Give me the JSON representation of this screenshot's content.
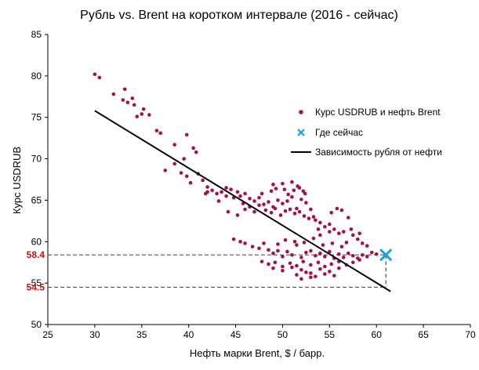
{
  "chart_data": {
    "type": "scatter",
    "title": "Рубль vs. Brent на коротком интервале (2016 - сейчас)",
    "xlabel": "Нефть  марки Brent, $ / барр.",
    "ylabel": "Курс USDRUB",
    "xlim": [
      25,
      70
    ],
    "ylim": [
      50,
      85
    ],
    "xticks": [
      25,
      30,
      35,
      40,
      45,
      50,
      55,
      60,
      65,
      70
    ],
    "yticks": [
      50,
      55,
      60,
      65,
      70,
      75,
      80,
      85
    ],
    "grid": false,
    "legend_position": "right",
    "colors": {
      "points": "#a50f4a",
      "current": "#1aa0e0",
      "trend": "#000000",
      "reference_label": "#d01010",
      "reference_line": "#555555"
    },
    "series": [
      {
        "name": "Курс USDRUB и нефть Brent",
        "kind": "points",
        "points": [
          [
            30.0,
            80.2
          ],
          [
            30.5,
            79.8
          ],
          [
            32.0,
            77.8
          ],
          [
            33.2,
            78.4
          ],
          [
            33.0,
            77.1
          ],
          [
            33.5,
            76.8
          ],
          [
            34.2,
            76.5
          ],
          [
            34.5,
            75.1
          ],
          [
            35.0,
            75.4
          ],
          [
            35.2,
            76.0
          ],
          [
            35.8,
            75.3
          ],
          [
            34.0,
            77.3
          ],
          [
            36.6,
            73.4
          ],
          [
            37.0,
            73.1
          ],
          [
            38.5,
            71.7
          ],
          [
            39.8,
            72.9
          ],
          [
            39.5,
            70.0
          ],
          [
            40.5,
            71.3
          ],
          [
            40.8,
            70.8
          ],
          [
            37.5,
            68.6
          ],
          [
            38.5,
            69.4
          ],
          [
            39.2,
            68.3
          ],
          [
            39.8,
            67.9
          ],
          [
            40.2,
            67.1
          ],
          [
            41.0,
            68.2
          ],
          [
            41.5,
            67.4
          ],
          [
            42.0,
            66.6
          ],
          [
            42.5,
            66.2
          ],
          [
            43.0,
            65.8
          ],
          [
            43.5,
            66.0
          ],
          [
            44.0,
            66.5
          ],
          [
            44.5,
            66.3
          ],
          [
            45.2,
            66.0
          ],
          [
            45.5,
            65.5
          ],
          [
            46.0,
            65.8
          ],
          [
            46.5,
            65.2
          ],
          [
            47.0,
            64.9
          ],
          [
            47.5,
            65.3
          ],
          [
            48.0,
            64.5
          ],
          [
            48.5,
            64.8
          ],
          [
            49.0,
            64.2
          ],
          [
            49.5,
            65.0
          ],
          [
            50.0,
            64.6
          ],
          [
            50.5,
            64.9
          ],
          [
            51.0,
            65.4
          ],
          [
            51.5,
            64.0
          ],
          [
            52.0,
            65.1
          ],
          [
            52.5,
            64.7
          ],
          [
            46.0,
            63.9
          ],
          [
            46.5,
            64.2
          ],
          [
            47.0,
            63.6
          ],
          [
            47.5,
            64.4
          ],
          [
            48.2,
            63.8
          ],
          [
            48.8,
            63.5
          ],
          [
            49.2,
            64.0
          ],
          [
            49.8,
            63.2
          ],
          [
            50.3,
            63.7
          ],
          [
            50.8,
            63.9
          ],
          [
            51.3,
            63.4
          ],
          [
            51.8,
            63.6
          ],
          [
            52.3,
            63.1
          ],
          [
            52.8,
            62.8
          ],
          [
            53.3,
            63.0
          ],
          [
            44.8,
            65.3
          ],
          [
            45.8,
            64.6
          ],
          [
            47.8,
            65.8
          ],
          [
            48.8,
            66.1
          ],
          [
            49.3,
            66.4
          ],
          [
            50.2,
            66.3
          ],
          [
            50.6,
            65.7
          ],
          [
            51.2,
            66.2
          ],
          [
            51.6,
            66.7
          ],
          [
            52.2,
            66.1
          ],
          [
            49.0,
            66.9
          ],
          [
            50.0,
            67.0
          ],
          [
            51.0,
            67.2
          ],
          [
            51.8,
            66.5
          ],
          [
            52.4,
            65.8
          ],
          [
            53.0,
            63.9
          ],
          [
            53.5,
            62.6
          ],
          [
            54.0,
            62.3
          ],
          [
            54.5,
            61.8
          ],
          [
            55.0,
            62.1
          ],
          [
            55.5,
            61.5
          ],
          [
            56.0,
            61.0
          ],
          [
            56.5,
            61.2
          ],
          [
            55.2,
            63.5
          ],
          [
            55.8,
            64.0
          ],
          [
            56.3,
            63.8
          ],
          [
            57.0,
            62.9
          ],
          [
            57.5,
            60.8
          ],
          [
            58.0,
            60.3
          ],
          [
            58.5,
            59.8
          ],
          [
            59.0,
            59.5
          ],
          [
            57.3,
            61.5
          ],
          [
            58.2,
            61.0
          ],
          [
            44.8,
            60.3
          ],
          [
            45.5,
            60.0
          ],
          [
            46.0,
            59.8
          ],
          [
            46.8,
            59.4
          ],
          [
            47.5,
            59.2
          ],
          [
            48.0,
            59.8
          ],
          [
            48.5,
            59.0
          ],
          [
            49.0,
            58.6
          ],
          [
            49.5,
            58.9
          ],
          [
            50.0,
            58.2
          ],
          [
            50.5,
            58.8
          ],
          [
            51.0,
            58.4
          ],
          [
            51.5,
            59.6
          ],
          [
            52.0,
            58.1
          ],
          [
            52.5,
            58.7
          ],
          [
            53.0,
            58.9
          ],
          [
            53.5,
            58.3
          ],
          [
            54.0,
            58.6
          ],
          [
            54.5,
            58.2
          ],
          [
            55.0,
            58.8
          ],
          [
            55.5,
            58.0
          ],
          [
            56.0,
            58.5
          ],
          [
            56.5,
            58.1
          ],
          [
            57.0,
            58.6
          ],
          [
            57.5,
            58.3
          ],
          [
            58.0,
            58.0
          ],
          [
            58.5,
            58.4
          ],
          [
            59.0,
            58.2
          ],
          [
            59.5,
            58.7
          ],
          [
            60.0,
            58.5
          ],
          [
            47.8,
            57.6
          ],
          [
            48.5,
            57.3
          ],
          [
            49.2,
            57.5
          ],
          [
            50.0,
            57.0
          ],
          [
            50.8,
            57.4
          ],
          [
            51.5,
            57.1
          ],
          [
            52.2,
            57.6
          ],
          [
            53.0,
            57.2
          ],
          [
            53.8,
            57.5
          ],
          [
            54.5,
            57.0
          ],
          [
            55.2,
            57.3
          ],
          [
            56.0,
            57.6
          ],
          [
            56.8,
            57.2
          ],
          [
            57.5,
            57.5
          ],
          [
            58.2,
            57.8
          ],
          [
            49.0,
            56.8
          ],
          [
            50.0,
            56.5
          ],
          [
            51.0,
            56.9
          ],
          [
            52.0,
            56.6
          ],
          [
            53.0,
            56.2
          ],
          [
            54.0,
            56.7
          ],
          [
            55.0,
            56.4
          ],
          [
            56.0,
            56.8
          ],
          [
            51.5,
            56.0
          ],
          [
            52.5,
            56.3
          ],
          [
            53.5,
            55.8
          ],
          [
            54.5,
            56.1
          ],
          [
            52.0,
            55.5
          ],
          [
            53.0,
            55.7
          ],
          [
            55.5,
            55.9
          ],
          [
            49.5,
            59.7
          ],
          [
            50.3,
            60.2
          ],
          [
            51.3,
            60.0
          ],
          [
            52.3,
            59.9
          ],
          [
            53.3,
            60.4
          ],
          [
            54.3,
            59.6
          ],
          [
            55.3,
            59.8
          ],
          [
            56.3,
            59.4
          ],
          [
            54.0,
            60.8
          ],
          [
            55.0,
            61.2
          ],
          [
            53.8,
            61.5
          ],
          [
            56.8,
            59.9
          ],
          [
            42.0,
            66.0
          ],
          [
            43.2,
            64.9
          ],
          [
            44.2,
            63.6
          ],
          [
            45.2,
            63.2
          ],
          [
            44.0,
            65.5
          ],
          [
            41.8,
            65.8
          ]
        ]
      },
      {
        "name": "Где сейчас",
        "kind": "marker",
        "points": [
          [
            61.0,
            58.4
          ]
        ]
      },
      {
        "name": "Зависимость рубля от нефти",
        "kind": "line",
        "points": [
          [
            30.0,
            75.8
          ],
          [
            61.5,
            54.0
          ]
        ]
      }
    ],
    "reference_lines": {
      "current": {
        "x": 61.0,
        "y": 58.4,
        "label": "58.4"
      },
      "forecast": {
        "x": 61.0,
        "y": 54.5,
        "label": "54.5"
      }
    }
  }
}
